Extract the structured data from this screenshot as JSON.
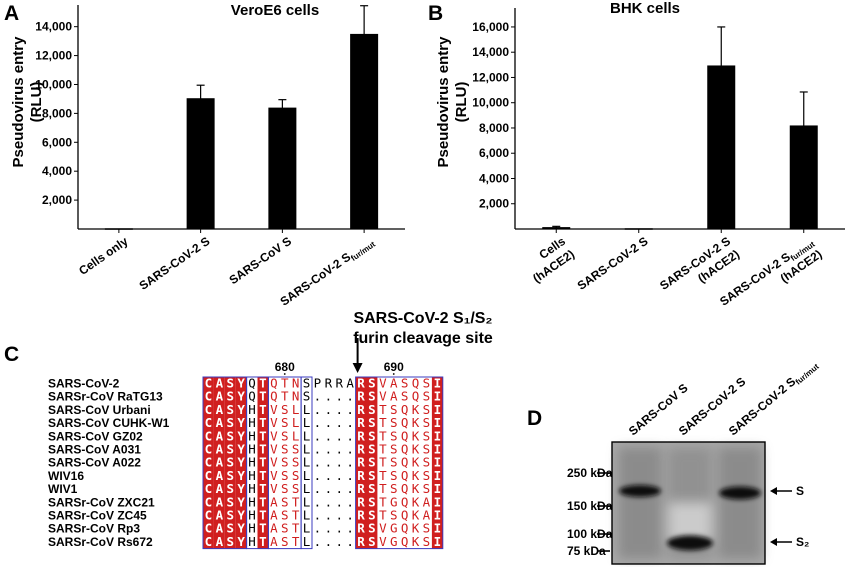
{
  "panels": {
    "A": "A",
    "B": "B",
    "C": "C",
    "D": "D"
  },
  "chart_data": [
    {
      "type": "bar",
      "title": "VeroE6 cells",
      "ylabel": "Pseudovirus entry (RLU)",
      "categories": [
        "Cells only",
        "SARS-CoV-2 S",
        "SARS-CoV S",
        "SARS-CoV-2 S_fur/mut"
      ],
      "values": [
        50,
        9050,
        8400,
        13500
      ],
      "errors": [
        0,
        900,
        550,
        1950
      ],
      "yticks": [
        "2,000",
        "4,000",
        "6,000",
        "8,000",
        "10,000",
        "12,000",
        "14,000"
      ],
      "ylim": [
        0,
        15500
      ],
      "bar_color": "#000000"
    },
    {
      "type": "bar",
      "title": "BHK cells",
      "ylabel": "Pseudovirus entry (RLU)",
      "categories": [
        "Cells (hACE2)",
        "SARS-CoV-2 S",
        "SARS-CoV-2 S (hACE2)",
        "SARS-CoV-2 S_fur/mut (hACE2)"
      ],
      "values": [
        150,
        60,
        12950,
        8200
      ],
      "errors": [
        60,
        0,
        3050,
        2650
      ],
      "yticks": [
        "2,000",
        "4,000",
        "6,000",
        "8,000",
        "10,000",
        "12,000",
        "14,000",
        "16,000"
      ],
      "ylim": [
        0,
        17500
      ],
      "bar_color": "#000000"
    }
  ],
  "chartA": {
    "title": "VeroE6 cells",
    "ylabel_line1": "Pseudovirus entry",
    "ylabel_line2": "(RLU)",
    "yticks": [
      "2,000",
      "4,000",
      "6,000",
      "8,000",
      "10,000",
      "12,000",
      "14,000"
    ],
    "x_labels": [
      {
        "main": "Cells only",
        "sub": ""
      },
      {
        "main": "SARS-CoV-2 S",
        "sub": ""
      },
      {
        "main": "SARS-CoV S",
        "sub": ""
      },
      {
        "main": "SARS-CoV-2 S",
        "sub": "fur/mut"
      }
    ]
  },
  "chartB": {
    "title": "BHK cells",
    "ylabel_line1": "Pseudovirus entry",
    "ylabel_line2": "(RLU)",
    "yticks": [
      "2,000",
      "4,000",
      "6,000",
      "8,000",
      "10,000",
      "12,000",
      "14,000",
      "16,000"
    ],
    "x_labels": [
      {
        "main": "Cells",
        "sub": "",
        "line2": "(hACE2)"
      },
      {
        "main": "SARS-CoV-2 S",
        "sub": "",
        "line2": ""
      },
      {
        "main": "SARS-CoV-2 S",
        "sub": "",
        "line2": "(hACE2)"
      },
      {
        "main": "SARS-CoV-2 S",
        "sub": "fur/mut",
        "line2": "(hACE2)"
      }
    ]
  },
  "alignment": {
    "furin_line1": "SARS-CoV-2 S₁/S₂",
    "furin_line2": "furin cleavage site",
    "pos_680": "680",
    "pos_690": "690",
    "sequences": [
      {
        "name": "SARS-CoV-2",
        "seq": "CASYQTQTNSPRRARSVASQSI"
      },
      {
        "name": "SARSr-CoV RaTG13",
        "seq": "CASYQTQTNS....RSVASQSI"
      },
      {
        "name": "SARS-CoV Urbani",
        "seq": "CASYHTVSLL....RSTSQKSI"
      },
      {
        "name": "SARS-CoV CUHK-W1",
        "seq": "CASYHTVSLL....RSTSQKSI"
      },
      {
        "name": "SARS-CoV GZ02",
        "seq": "CASYHTVSLL....RSTSQKSI"
      },
      {
        "name": "SARS-CoV A031",
        "seq": "CASYHTVSSL....RSTSQKSI"
      },
      {
        "name": "SARS-CoV A022",
        "seq": "CASYHTVSSL....RSTSQKSI"
      },
      {
        "name": "WIV16",
        "seq": "CASYHTVSSL....RSTSQKSI"
      },
      {
        "name": "WIV1",
        "seq": "CASYHTVSSL....RSTSQKSI"
      },
      {
        "name": "SARSr-CoV ZXC21",
        "seq": "CASYHTASTL....RSTGQKAI"
      },
      {
        "name": "SARSr-CoV ZC45",
        "seq": "CASYHTASTL....RSTSQKAI"
      },
      {
        "name": "SARSr-CoV Rp3",
        "seq": "CASYHTASTL....RSVGQKSI"
      },
      {
        "name": "SARSr-CoV Rs672",
        "seq": "CASYHTASTL....RSVGQKSI"
      }
    ],
    "colors": {
      "conserved": "#d01f1f",
      "box": "#3b3bbf",
      "similar": "#d01f1f"
    }
  },
  "blot": {
    "lanes": [
      {
        "main": "SARS-CoV S",
        "sub": ""
      },
      {
        "main": "SARS-CoV-2 S",
        "sub": ""
      },
      {
        "main": "SARS-CoV-2 S",
        "sub": "fur/mut"
      }
    ],
    "markers": [
      "250  kDa",
      "150  kDa",
      "100  kDa",
      "75  kDa"
    ],
    "band_labels": {
      "S": "S",
      "S2": "S₂"
    }
  }
}
